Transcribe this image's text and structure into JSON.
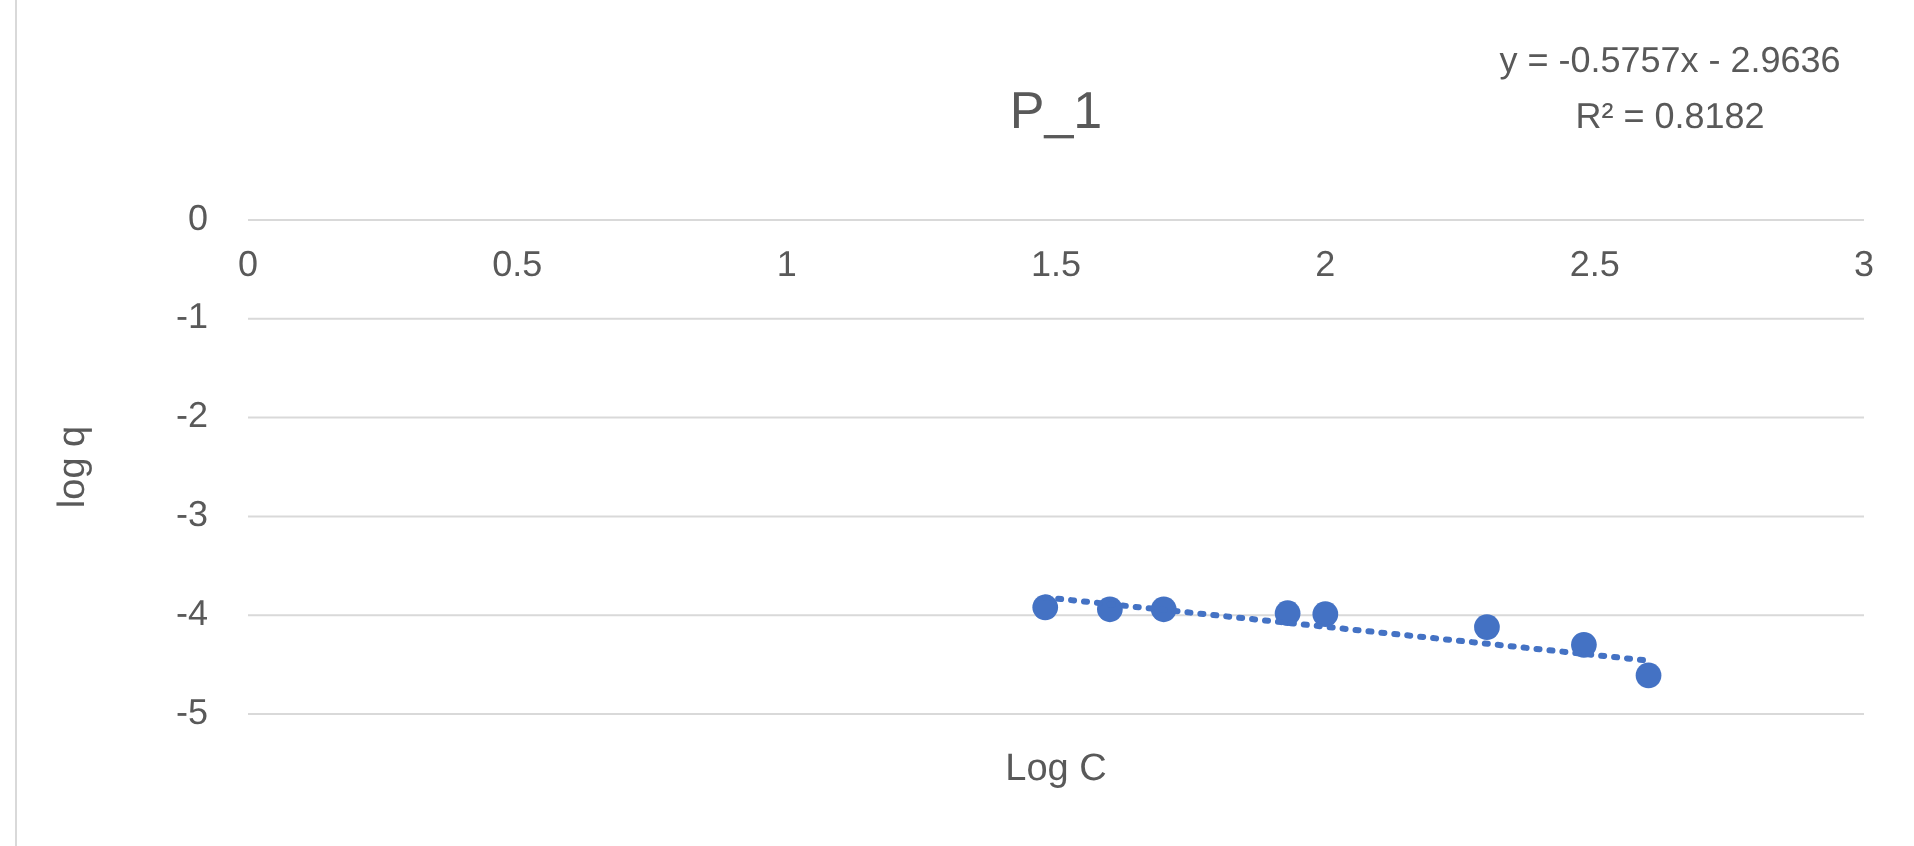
{
  "chart_data": {
    "type": "scatter",
    "title": "P_1",
    "xlabel": "Log C",
    "ylabel": "log q",
    "xlim": [
      0,
      3
    ],
    "xticks": [
      0,
      0.5,
      1,
      1.5,
      2,
      2.5,
      3
    ],
    "ylim": [
      -5,
      0
    ],
    "yticks": [
      -5,
      -4,
      -3,
      -2,
      -1,
      0
    ],
    "grid": "y",
    "series": [
      {
        "marker": "circle",
        "color": "#4472c4",
        "x": [
          1.48,
          1.6,
          1.7,
          1.93,
          2.0,
          2.3,
          2.48,
          2.6
        ],
        "values": [
          -3.92,
          -3.94,
          -3.94,
          -3.98,
          -3.99,
          -4.12,
          -4.3,
          -4.61
        ]
      },
      {
        "type": "line",
        "color": "#4472c4",
        "line_style": "dotted",
        "x": [
          1.48,
          2.6
        ],
        "values": [
          -3.82,
          -4.46
        ]
      }
    ],
    "annotations": [
      "y = -0.5757x - 2.9636",
      "R² = 0.8182"
    ]
  }
}
